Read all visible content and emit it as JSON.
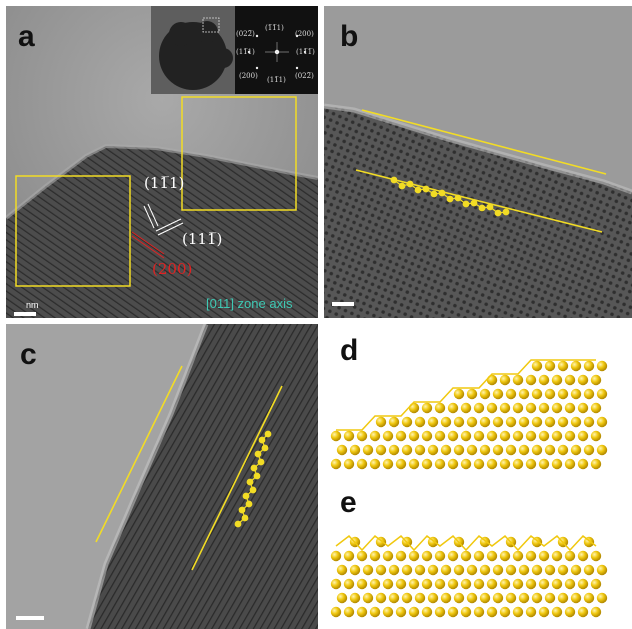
{
  "panels": {
    "a": {
      "label": "a",
      "zone_axis": "[011] zone axis",
      "scale_unit": "nm",
      "annotations": {
        "p1": "(11̅1)",
        "p2": "(111̅)",
        "p3": "(200)"
      },
      "fft_labels": [
        "(022̅)",
        "(1̅1̅1)",
        "(200)",
        "(11̅1)",
        "(11̅1̅)",
        "(200)",
        "(11̅1)",
        "(022̅)"
      ]
    },
    "b": {
      "label": "b"
    },
    "c": {
      "label": "c"
    },
    "d": {
      "label": "d"
    },
    "e": {
      "label": "e"
    }
  },
  "colors": {
    "highlight": "#f2dc25",
    "atom": "#f0c80f",
    "annotation_red": "#e02222",
    "zone_axis": "#3ec9b4"
  }
}
